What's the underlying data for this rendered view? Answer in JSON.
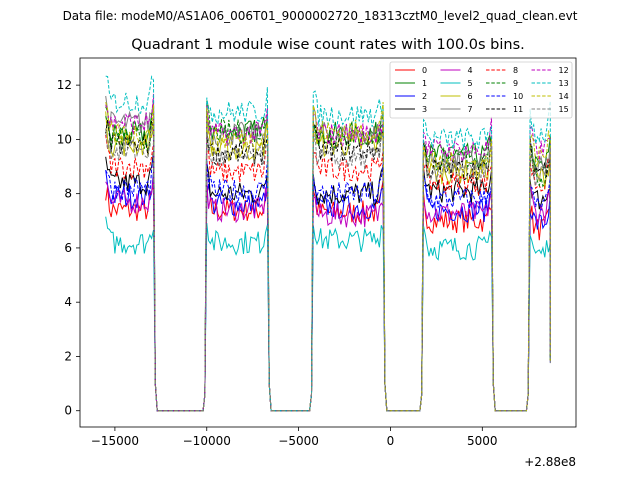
{
  "chart_data": {
    "type": "line",
    "suptitle": "Data file: modeM0/AS1A06_006T01_9000002720_18313cztM0_level2_quad_clean.evt",
    "title": "Quadrant 1 module wise count rates with 100.0s bins.",
    "xlabel": "",
    "ylabel": "",
    "x_offset_label": "+2.88e8",
    "xlim": [
      -16900,
      10100
    ],
    "ylim": [
      -0.6,
      13.0
    ],
    "x_ticks": [
      -15000,
      -10000,
      -5000,
      0,
      5000
    ],
    "x_tick_labels": [
      "−15000",
      "−10000",
      "−5000",
      "0",
      "5000"
    ],
    "y_ticks": [
      0,
      2,
      4,
      6,
      8,
      10,
      12
    ],
    "y_tick_labels": [
      "0",
      "2",
      "4",
      "6",
      "8",
      "10",
      "12"
    ],
    "bin_seconds": 100,
    "segments": [
      {
        "on_start": -15500,
        "on_end": -12900,
        "off_end": -10000
      },
      {
        "on_start": -10000,
        "on_end": -6700,
        "off_end": -4200
      },
      {
        "on_start": -4200,
        "on_end": -400,
        "off_end": 1800
      },
      {
        "on_start": 1800,
        "on_end": 5500,
        "off_end": 7600
      },
      {
        "on_start": 7600,
        "on_end": 8700,
        "off_end": null
      }
    ],
    "x_end": 8700,
    "off_rate": 0,
    "legend_position": "top-right",
    "series": [
      {
        "name": "0",
        "color": "#ff0000",
        "dash": "solid",
        "levels": [
          7.4,
          7.4,
          7.3,
          7.0,
          6.7
        ]
      },
      {
        "name": "1",
        "color": "#008000",
        "dash": "solid",
        "levels": [
          10.2,
          10.3,
          10.2,
          9.4,
          9.0
        ]
      },
      {
        "name": "2",
        "color": "#0000ff",
        "dash": "solid",
        "levels": [
          7.9,
          7.6,
          7.5,
          7.4,
          6.9
        ]
      },
      {
        "name": "3",
        "color": "#000000",
        "dash": "solid",
        "levels": [
          8.4,
          8.0,
          8.0,
          8.1,
          7.8
        ]
      },
      {
        "name": "4",
        "color": "#bf00bf",
        "dash": "solid",
        "levels": [
          7.7,
          7.4,
          7.2,
          7.3,
          7.3
        ]
      },
      {
        "name": "5",
        "color": "#00bfbf",
        "dash": "solid",
        "levels": [
          6.2,
          6.2,
          6.3,
          6.0,
          5.8
        ]
      },
      {
        "name": "6",
        "color": "#bfbf00",
        "dash": "solid",
        "levels": [
          9.8,
          9.6,
          9.8,
          8.8,
          8.6
        ]
      },
      {
        "name": "7",
        "color": "#808080",
        "dash": "solid",
        "levels": [
          10.6,
          10.2,
          10.2,
          9.2,
          8.9
        ]
      },
      {
        "name": "8",
        "color": "#ff0000",
        "dash": "dashed",
        "levels": [
          9.0,
          8.8,
          8.9,
          8.4,
          8.4
        ]
      },
      {
        "name": "9",
        "color": "#008000",
        "dash": "dashed",
        "levels": [
          10.0,
          10.3,
          10.1,
          9.3,
          8.6
        ]
      },
      {
        "name": "10",
        "color": "#0000ff",
        "dash": "dashed",
        "levels": [
          8.2,
          8.1,
          8.0,
          7.8,
          7.5
        ]
      },
      {
        "name": "11",
        "color": "#000000",
        "dash": "dashed",
        "levels": [
          9.8,
          9.5,
          9.6,
          8.9,
          8.9
        ]
      },
      {
        "name": "12",
        "color": "#bf00bf",
        "dash": "dashed",
        "levels": [
          10.6,
          10.2,
          10.2,
          9.6,
          9.6
        ]
      },
      {
        "name": "13",
        "color": "#00bfbf",
        "dash": "dashed",
        "levels": [
          11.4,
          11.0,
          10.9,
          10.0,
          10.2
        ]
      },
      {
        "name": "14",
        "color": "#bfbf00",
        "dash": "dashed",
        "levels": [
          10.2,
          10.0,
          10.3,
          9.1,
          9.4
        ]
      },
      {
        "name": "15",
        "color": "#808080",
        "dash": "dashed",
        "levels": [
          9.6,
          9.3,
          9.3,
          8.8,
          8.6
        ]
      }
    ]
  }
}
